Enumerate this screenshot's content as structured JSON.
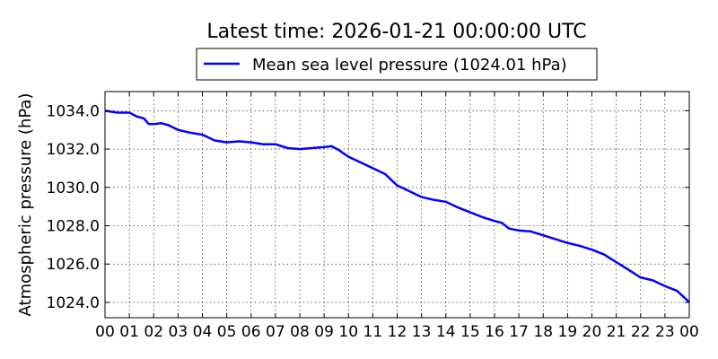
{
  "chart_data": {
    "type": "line",
    "title": "Latest time: 2026-01-21 00:00:00 UTC",
    "xlabel": "",
    "ylabel": "Atmospheric pressure (hPa)",
    "xlim": [
      0,
      24
    ],
    "ylim": [
      1023.2,
      1035.0
    ],
    "x_ticks": [
      0,
      1,
      2,
      3,
      4,
      5,
      6,
      7,
      8,
      9,
      10,
      11,
      12,
      13,
      14,
      15,
      16,
      17,
      18,
      19,
      20,
      21,
      22,
      23,
      24
    ],
    "x_tick_labels": [
      "00",
      "01",
      "02",
      "03",
      "04",
      "05",
      "06",
      "07",
      "08",
      "09",
      "10",
      "11",
      "12",
      "13",
      "14",
      "15",
      "16",
      "17",
      "18",
      "19",
      "20",
      "21",
      "22",
      "23",
      "00"
    ],
    "y_ticks": [
      1024,
      1026,
      1028,
      1030,
      1032,
      1034
    ],
    "y_tick_labels": [
      "1024.0",
      "1026.0",
      "1028.0",
      "1030.0",
      "1032.0",
      "1034.0"
    ],
    "grid": true,
    "legend_position": "top-center",
    "series": [
      {
        "name": "Mean sea level pressure (1024.01 hPa)",
        "color": "#0000ff",
        "x": [
          0,
          0.5,
          1,
          1.3,
          1.6,
          1.8,
          2.0,
          2.3,
          2.6,
          3.0,
          3.5,
          4.0,
          4.5,
          5.0,
          5.5,
          6.0,
          6.5,
          7.0,
          7.5,
          8.0,
          8.5,
          9.0,
          9.3,
          9.6,
          10.0,
          10.5,
          11.0,
          11.5,
          12.0,
          12.5,
          13.0,
          13.5,
          14.0,
          14.5,
          15.0,
          15.5,
          16.0,
          16.3,
          16.6,
          17.0,
          17.5,
          18.0,
          18.5,
          19.0,
          19.5,
          20.0,
          20.5,
          21.0,
          21.5,
          22.0,
          22.5,
          23.0,
          23.5,
          24.0
        ],
        "y": [
          1034.0,
          1033.9,
          1033.9,
          1033.7,
          1033.6,
          1033.3,
          1033.3,
          1033.35,
          1033.25,
          1033.0,
          1032.85,
          1032.75,
          1032.45,
          1032.35,
          1032.4,
          1032.35,
          1032.25,
          1032.25,
          1032.05,
          1032.0,
          1032.05,
          1032.1,
          1032.15,
          1031.95,
          1031.6,
          1031.3,
          1031.0,
          1030.7,
          1030.1,
          1029.8,
          1029.5,
          1029.35,
          1029.25,
          1028.95,
          1028.7,
          1028.45,
          1028.25,
          1028.15,
          1027.85,
          1027.75,
          1027.7,
          1027.5,
          1027.3,
          1027.1,
          1026.95,
          1026.75,
          1026.5,
          1026.1,
          1025.7,
          1025.3,
          1025.15,
          1024.85,
          1024.6,
          1024.01
        ]
      }
    ]
  }
}
